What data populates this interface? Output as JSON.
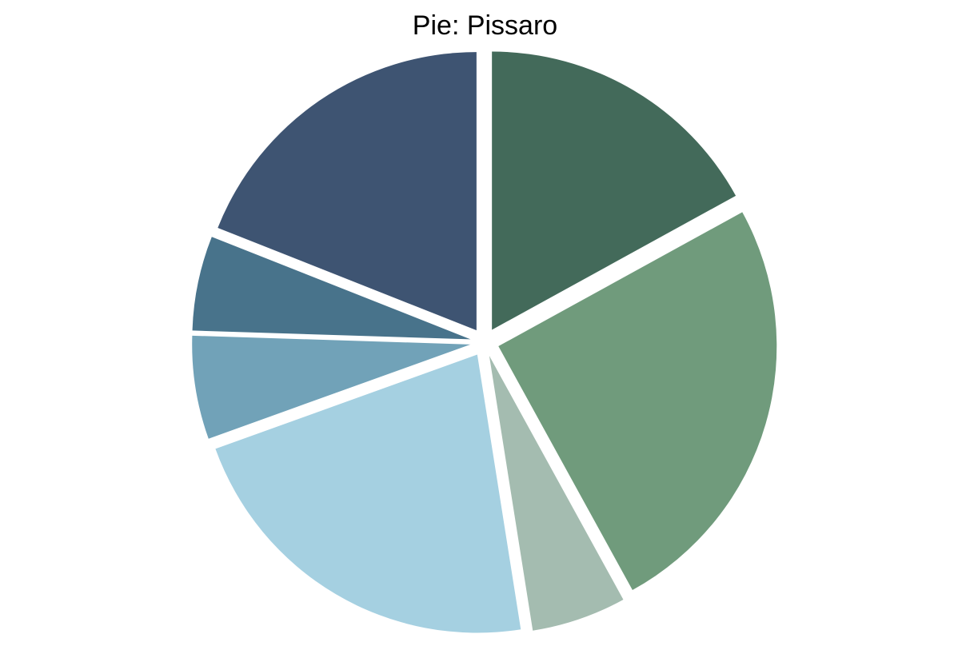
{
  "chart_data": {
    "type": "pie",
    "title": "Pie: Pissaro",
    "start_angle_deg": 90,
    "direction": "clockwise",
    "slices": [
      {
        "value": 17.0,
        "color": "#436a5a"
      },
      {
        "value": 25.0,
        "color": "#709b7c"
      },
      {
        "value": 5.5,
        "color": "#a4bcb0"
      },
      {
        "value": 22.0,
        "color": "#a5d0e1"
      },
      {
        "value": 6.0,
        "color": "#71a2b8"
      },
      {
        "value": 5.5,
        "color": "#48738b"
      },
      {
        "value": 19.0,
        "color": "#3e5472"
      }
    ],
    "legend": "none"
  }
}
